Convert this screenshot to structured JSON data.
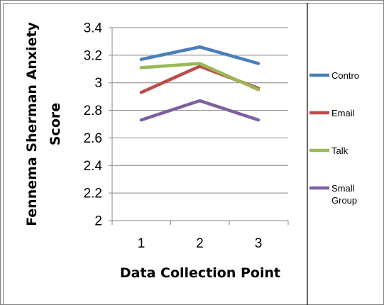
{
  "chart_data": {
    "type": "line",
    "x": [
      1,
      2,
      3
    ],
    "categories": [
      "1",
      "2",
      "3"
    ],
    "xlabel": "Data Collection Point",
    "ylabel": [
      "Fennema Sherman Anxiety",
      "Score"
    ],
    "ylim": [
      2,
      3.4
    ],
    "yticks": [
      2,
      2.2,
      2.4,
      2.6,
      2.8,
      3,
      3.2,
      3.4
    ],
    "ytick_labels": [
      "2",
      "2.2",
      "2.4",
      "2.6",
      "2.8",
      "3",
      "3.2",
      "3.4"
    ],
    "grid": true,
    "legend_position": "right",
    "series": [
      {
        "name": "Contro",
        "legend_lines": [
          "Contro"
        ],
        "color": "#4a7ebb",
        "values": [
          3.17,
          3.26,
          3.14
        ]
      },
      {
        "name": "Email",
        "legend_lines": [
          "Email"
        ],
        "color": "#be4b48",
        "values": [
          2.93,
          3.12,
          2.96
        ]
      },
      {
        "name": "Talk",
        "legend_lines": [
          "Talk"
        ],
        "color": "#98b954",
        "values": [
          3.11,
          3.14,
          2.95
        ]
      },
      {
        "name": "Small Group",
        "legend_lines": [
          "Small",
          "Group"
        ],
        "color": "#7d60a0",
        "values": [
          2.73,
          2.87,
          2.73
        ]
      }
    ]
  }
}
